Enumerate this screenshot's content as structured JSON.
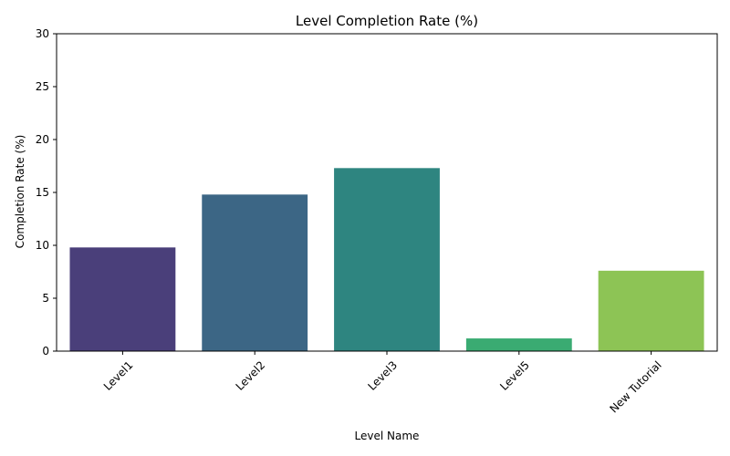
{
  "chart_data": {
    "type": "bar",
    "title": "Level Completion Rate (%)",
    "xlabel": "Level Name",
    "ylabel": "Completion Rate (%)",
    "categories": [
      "Level1",
      "Level2",
      "Level3",
      "Level5",
      "New Tutorial"
    ],
    "values": [
      9.8,
      14.8,
      17.3,
      1.2,
      7.6
    ],
    "colors": [
      "#4a3f7a",
      "#3c6685",
      "#2e8580",
      "#3aab72",
      "#8dc455"
    ],
    "ylim": [
      0,
      30
    ],
    "yticks": [
      0,
      5,
      10,
      15,
      20,
      25,
      30
    ],
    "grid": false,
    "legend": "none"
  }
}
